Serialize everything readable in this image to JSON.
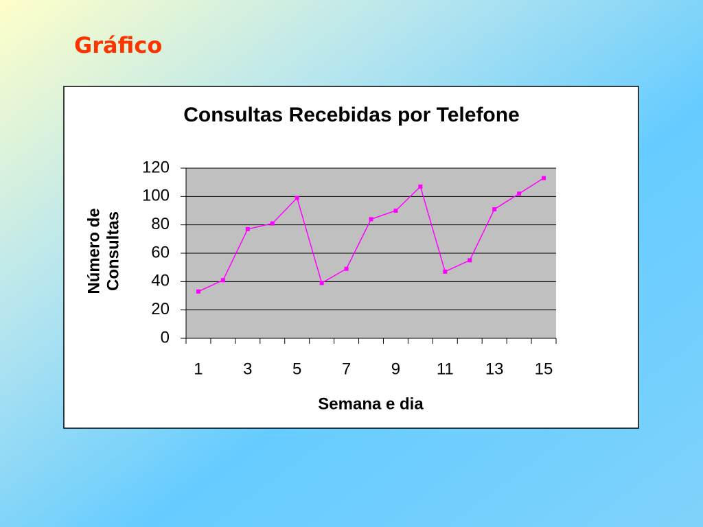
{
  "title": "Gráfico",
  "chart_data": {
    "type": "line",
    "title": "Consultas Recebidas por Telefone",
    "xlabel": "Semana e dia",
    "ylabel": [
      "Número de",
      "Consultas"
    ],
    "categories": [
      "1",
      null,
      "3",
      null,
      "5",
      null,
      "7",
      null,
      "9",
      null,
      "11",
      null,
      "13",
      null,
      "15"
    ],
    "series": [
      {
        "name": "Consultas",
        "color": "#ff00ff",
        "values": [
          33,
          41,
          77,
          81,
          99,
          39,
          49,
          84,
          90,
          107,
          47,
          55,
          91,
          102,
          113
        ]
      }
    ],
    "ylim": [
      0,
      120
    ],
    "yticks": [
      0,
      20,
      40,
      60,
      80,
      100,
      120
    ],
    "grid": true,
    "plot_background": "#c0c0c0"
  }
}
